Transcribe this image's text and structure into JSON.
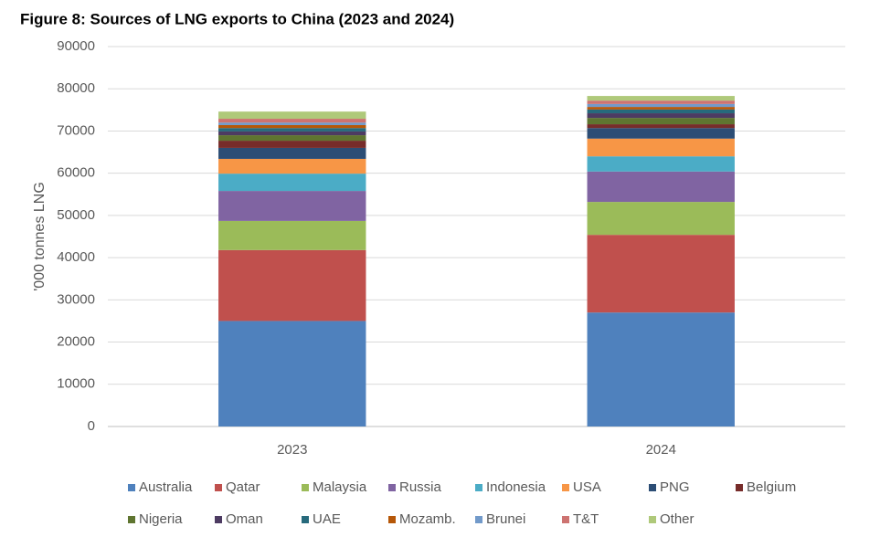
{
  "chart_data": {
    "type": "stacked_bar",
    "title": "Figure 8: Sources of LNG exports to China (2023 and 2024)",
    "y_label": "'000 tonnes LNG",
    "categories": [
      "2023",
      "2024"
    ],
    "ylim": [
      0,
      90000
    ],
    "yticks": [
      0,
      10000,
      20000,
      30000,
      40000,
      50000,
      60000,
      70000,
      80000,
      90000
    ],
    "grid": true,
    "series": [
      {
        "name": "Australia",
        "color": "#4f81bd",
        "values": [
          25000,
          27000
        ]
      },
      {
        "name": "Qatar",
        "color": "#c0504d",
        "values": [
          16800,
          18400
        ]
      },
      {
        "name": "Malaysia",
        "color": "#9bbb59",
        "values": [
          6900,
          7800
        ]
      },
      {
        "name": "Russia",
        "color": "#8064a2",
        "values": [
          7100,
          7200
        ]
      },
      {
        "name": "Indonesia",
        "color": "#4bacc6",
        "values": [
          4100,
          3600
        ]
      },
      {
        "name": "USA",
        "color": "#f79646",
        "values": [
          3500,
          4200
        ]
      },
      {
        "name": "PNG",
        "color": "#2c4d75",
        "values": [
          2600,
          2500
        ]
      },
      {
        "name": "Belgium",
        "color": "#772c2a",
        "values": [
          1700,
          900
        ]
      },
      {
        "name": "Nigeria",
        "color": "#5f7530",
        "values": [
          1300,
          1500
        ]
      },
      {
        "name": "Oman",
        "color": "#4d3b62",
        "values": [
          900,
          1100
        ]
      },
      {
        "name": "UAE",
        "color": "#276a7c",
        "values": [
          800,
          900
        ]
      },
      {
        "name": "Mozamb.",
        "color": "#b65708",
        "values": [
          700,
          600
        ]
      },
      {
        "name": "Brunei",
        "color": "#729aca",
        "values": [
          600,
          700
        ]
      },
      {
        "name": "T&T",
        "color": "#cd7371",
        "values": [
          900,
          800
        ]
      },
      {
        "name": "Other",
        "color": "#afc97a",
        "values": [
          1700,
          1100
        ]
      }
    ]
  }
}
